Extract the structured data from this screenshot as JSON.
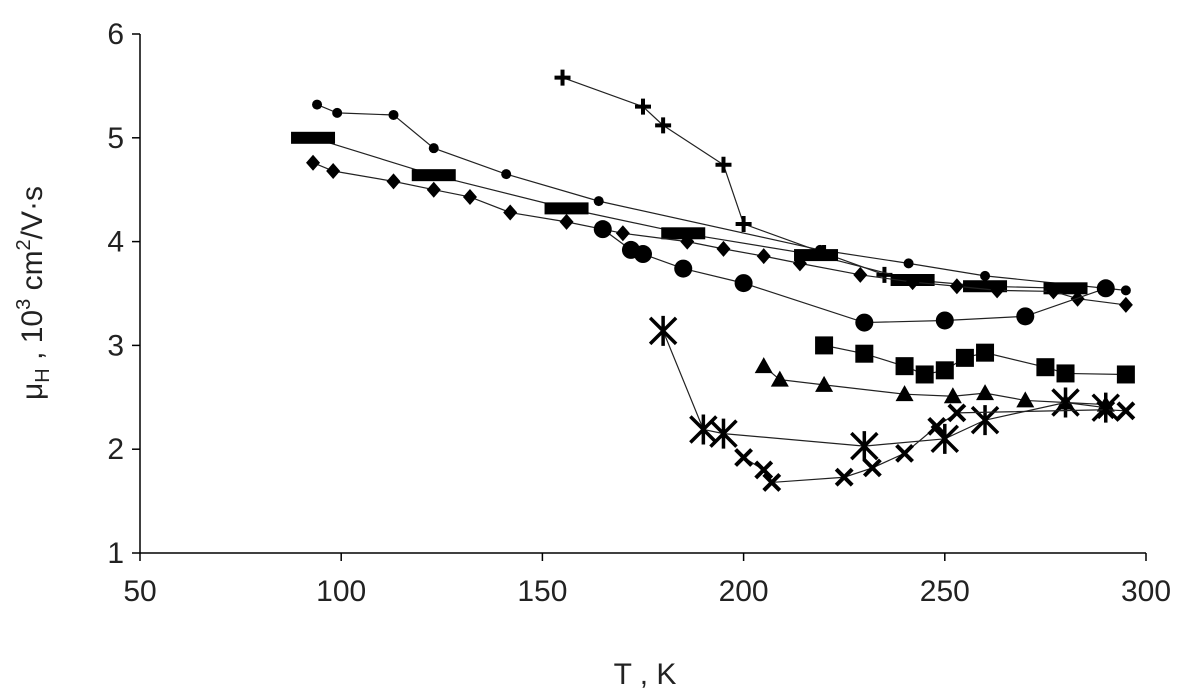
{
  "chart_data": {
    "type": "scatter",
    "xlabel": "T , K",
    "ylabel_main": "μ",
    "ylabel_sub": "H",
    "ylabel_mid": " , 10",
    "ylabel_sup": "3",
    "ylabel_mid2": " cm",
    "ylabel_sup2": "2",
    "ylabel_end": "/V·s",
    "xlim": [
      50,
      300
    ],
    "ylim": [
      1,
      6
    ],
    "xticks": [
      50,
      100,
      150,
      200,
      250,
      300
    ],
    "yticks": [
      1,
      2,
      3,
      4,
      5,
      6
    ],
    "grid": false,
    "series": [
      {
        "marker": "small-circle",
        "x": [
          94,
          99,
          113,
          123,
          141,
          164,
          219,
          241,
          260,
          295
        ],
        "y": [
          5.32,
          5.24,
          5.22,
          4.9,
          4.65,
          4.39,
          3.92,
          3.79,
          3.67,
          3.53
        ]
      },
      {
        "marker": "plus",
        "x": [
          155,
          175,
          180,
          195,
          200,
          220,
          235
        ],
        "y": [
          5.58,
          5.3,
          5.12,
          4.74,
          4.17,
          3.89,
          3.68
        ]
      },
      {
        "marker": "bar",
        "x": [
          93,
          123,
          156,
          185,
          218,
          242,
          260,
          280
        ],
        "y": [
          5.0,
          4.64,
          4.32,
          4.08,
          3.87,
          3.63,
          3.57,
          3.55
        ]
      },
      {
        "marker": "diamond",
        "x": [
          93,
          98,
          113,
          123,
          132,
          142,
          156,
          170,
          186,
          195,
          205,
          214,
          229,
          242,
          253,
          263,
          277,
          283,
          295
        ],
        "y": [
          4.76,
          4.68,
          4.58,
          4.5,
          4.43,
          4.28,
          4.19,
          4.08,
          4.0,
          3.93,
          3.86,
          3.79,
          3.68,
          3.61,
          3.57,
          3.53,
          3.52,
          3.45,
          3.39
        ]
      },
      {
        "marker": "circle",
        "x": [
          165,
          172,
          175,
          185,
          200,
          230,
          250,
          270,
          290
        ],
        "y": [
          4.12,
          3.92,
          3.88,
          3.74,
          3.6,
          3.22,
          3.24,
          3.28,
          3.55
        ]
      },
      {
        "marker": "square",
        "x": [
          220,
          230,
          240,
          245,
          250,
          255,
          260,
          275,
          280,
          295
        ],
        "y": [
          3.0,
          2.92,
          2.8,
          2.72,
          2.76,
          2.88,
          2.93,
          2.79,
          2.73,
          2.72
        ]
      },
      {
        "marker": "triangle",
        "x": [
          205,
          209,
          220,
          240,
          252,
          260,
          270,
          280,
          290
        ],
        "y": [
          2.8,
          2.67,
          2.62,
          2.53,
          2.51,
          2.54,
          2.47,
          2.45,
          2.43
        ]
      },
      {
        "marker": "asterisk",
        "x": [
          180,
          190,
          195,
          230,
          250,
          260,
          280,
          290
        ],
        "y": [
          3.14,
          2.19,
          2.15,
          2.03,
          2.1,
          2.28,
          2.45,
          2.4
        ]
      },
      {
        "marker": "x-cross",
        "x": [
          200,
          205,
          207,
          225,
          232,
          240,
          248,
          253,
          290,
          295
        ],
        "y": [
          1.92,
          1.8,
          1.68,
          1.73,
          1.82,
          1.96,
          2.22,
          2.35,
          2.38,
          2.37
        ]
      }
    ]
  }
}
